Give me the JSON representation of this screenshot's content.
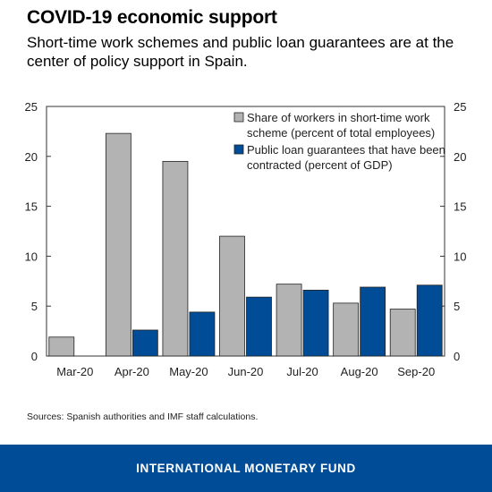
{
  "header": {
    "title": "COVID-19 economic support",
    "subtitle": "Short-time work schemes and public loan guarantees are at the center of policy support in Spain."
  },
  "chart_data": {
    "type": "bar",
    "title": "",
    "xlabel": "",
    "ylabel": "",
    "categories": [
      "Mar-20",
      "Apr-20",
      "May-20",
      "Jun-20",
      "Jul-20",
      "Aug-20",
      "Sep-20"
    ],
    "series": [
      {
        "name": "Share of workers in short-time work scheme (percent of total employees)",
        "name_lines": [
          "Share of workers in short-time work",
          "scheme (percent of total employees)"
        ],
        "values": [
          1.9,
          22.3,
          19.5,
          12.0,
          7.2,
          5.3,
          4.7
        ],
        "color": "#b3b3b3"
      },
      {
        "name": "Public loan guarantees that have been contracted (percent of GDP)",
        "name_lines": [
          "Public loan guarantees that have been",
          "contracted (percent of GDP)"
        ],
        "values": [
          null,
          2.6,
          4.4,
          5.9,
          6.6,
          6.9,
          7.1
        ],
        "color": "#004c97"
      }
    ],
    "ylim": [
      0,
      25
    ],
    "yticks": [
      0,
      5,
      10,
      15,
      20,
      25
    ],
    "y_axis_both_sides": true,
    "grid": false,
    "legend_position": "top-right"
  },
  "source": "Sources: Spanish authorities and IMF staff calculations.",
  "footer": {
    "label": "INTERNATIONAL MONETARY FUND",
    "color": "#004c97"
  }
}
